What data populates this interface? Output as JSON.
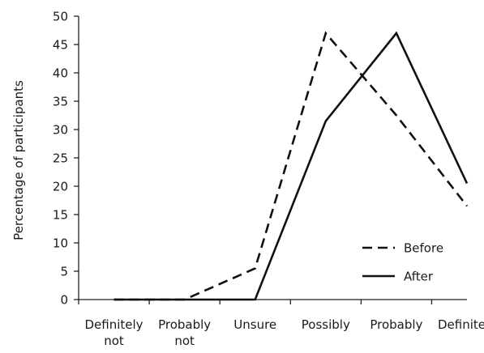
{
  "chart_data": {
    "type": "line",
    "categories": [
      [
        "Definitely",
        "not"
      ],
      [
        "Probably",
        "not"
      ],
      [
        "Unsure"
      ],
      [
        "Possibly"
      ],
      [
        "Probably"
      ],
      [
        "Definitely"
      ]
    ],
    "ylabel": "Percentage of participants",
    "xlabel": "",
    "ylim": [
      0,
      50
    ],
    "yticks": [
      "0",
      "5",
      "10",
      "15",
      "20",
      "25",
      "30",
      "35",
      "40",
      "45",
      "50"
    ],
    "grid": false,
    "legend_position": "bottom-right",
    "series": [
      {
        "name": "Before",
        "style": "dashed",
        "color": "#111111",
        "values": [
          0,
          0,
          5.5,
          47,
          32.5,
          16.5
        ]
      },
      {
        "name": "After",
        "style": "solid",
        "color": "#111111",
        "values": [
          0,
          0,
          0,
          31.5,
          47,
          20.5
        ]
      }
    ]
  }
}
